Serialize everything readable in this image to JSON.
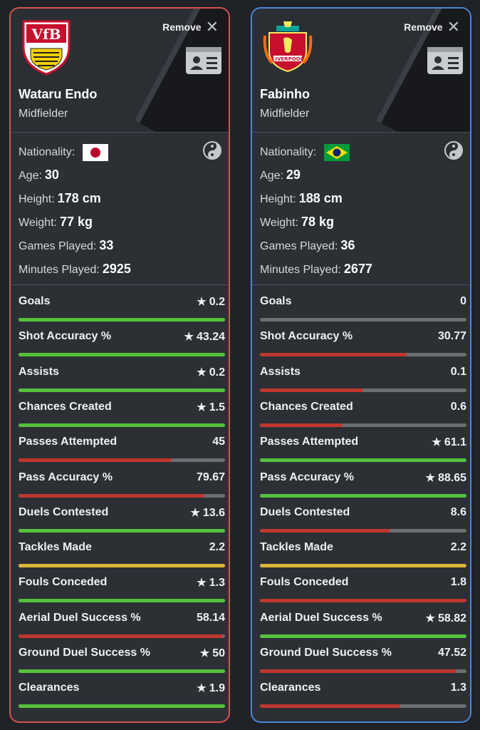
{
  "players": [
    {
      "name": "Wataru Endo",
      "position": "Midfielder",
      "remove_label": "Remove",
      "nationality_label": "Nationality:",
      "age_label": "Age:",
      "age": "30",
      "height_label": "Height:",
      "height": "178 cm",
      "weight_label": "Weight:",
      "weight": "77 kg",
      "games_label": "Games Played:",
      "games": "33",
      "minutes_label": "Minutes Played:",
      "minutes": "2925",
      "stats": [
        {
          "label": "Goals",
          "value": "0.2",
          "star": true,
          "fill": 1.0,
          "color": "#55c13b"
        },
        {
          "label": "Shot Accuracy %",
          "value": "43.24",
          "star": true,
          "fill": 1.0,
          "color": "#55c13b"
        },
        {
          "label": "Assists",
          "value": "0.2",
          "star": true,
          "fill": 1.0,
          "color": "#55c13b"
        },
        {
          "label": "Chances Created",
          "value": "1.5",
          "star": true,
          "fill": 1.0,
          "color": "#55c13b"
        },
        {
          "label": "Passes Attempted",
          "value": "45",
          "star": false,
          "fill": 0.74,
          "color": "#c0372e"
        },
        {
          "label": "Pass Accuracy %",
          "value": "79.67",
          "star": false,
          "fill": 0.9,
          "color": "#c0372e"
        },
        {
          "label": "Duels Contested",
          "value": "13.6",
          "star": true,
          "fill": 1.0,
          "color": "#55c13b"
        },
        {
          "label": "Tackles Made",
          "value": "2.2",
          "star": false,
          "fill": 1.0,
          "color": "#e0b43a"
        },
        {
          "label": "Fouls Conceded",
          "value": "1.3",
          "star": true,
          "fill": 1.0,
          "color": "#55c13b"
        },
        {
          "label": "Aerial Duel Success %",
          "value": "58.14",
          "star": false,
          "fill": 0.99,
          "color": "#c0372e"
        },
        {
          "label": "Ground Duel Success %",
          "value": "50",
          "star": true,
          "fill": 1.0,
          "color": "#55c13b"
        },
        {
          "label": "Clearances",
          "value": "1.9",
          "star": true,
          "fill": 1.0,
          "color": "#55c13b"
        }
      ]
    },
    {
      "name": "Fabinho",
      "position": "Midfielder",
      "remove_label": "Remove",
      "nationality_label": "Nationality:",
      "age_label": "Age:",
      "age": "29",
      "height_label": "Height:",
      "height": "188 cm",
      "weight_label": "Weight:",
      "weight": "78 kg",
      "games_label": "Games Played:",
      "games": "36",
      "minutes_label": "Minutes Played:",
      "minutes": "2677",
      "stats": [
        {
          "label": "Goals",
          "value": "0",
          "star": false,
          "fill": 0.0,
          "color": "#c0372e"
        },
        {
          "label": "Shot Accuracy %",
          "value": "30.77",
          "star": false,
          "fill": 0.71,
          "color": "#c0372e"
        },
        {
          "label": "Assists",
          "value": "0.1",
          "star": false,
          "fill": 0.5,
          "color": "#c0372e"
        },
        {
          "label": "Chances Created",
          "value": "0.6",
          "star": false,
          "fill": 0.4,
          "color": "#c0372e"
        },
        {
          "label": "Passes Attempted",
          "value": "61.1",
          "star": true,
          "fill": 1.0,
          "color": "#55c13b"
        },
        {
          "label": "Pass Accuracy %",
          "value": "88.65",
          "star": true,
          "fill": 1.0,
          "color": "#55c13b"
        },
        {
          "label": "Duels Contested",
          "value": "8.6",
          "star": false,
          "fill": 0.63,
          "color": "#c0372e"
        },
        {
          "label": "Tackles Made",
          "value": "2.2",
          "star": false,
          "fill": 1.0,
          "color": "#e0b43a"
        },
        {
          "label": "Fouls Conceded",
          "value": "1.8",
          "star": false,
          "fill": 1.0,
          "color": "#c0372e"
        },
        {
          "label": "Aerial Duel Success %",
          "value": "58.82",
          "star": true,
          "fill": 1.0,
          "color": "#55c13b"
        },
        {
          "label": "Ground Duel Success %",
          "value": "47.52",
          "star": false,
          "fill": 0.95,
          "color": "#c0372e"
        },
        {
          "label": "Clearances",
          "value": "1.3",
          "star": false,
          "fill": 0.68,
          "color": "#c0372e"
        }
      ]
    }
  ]
}
